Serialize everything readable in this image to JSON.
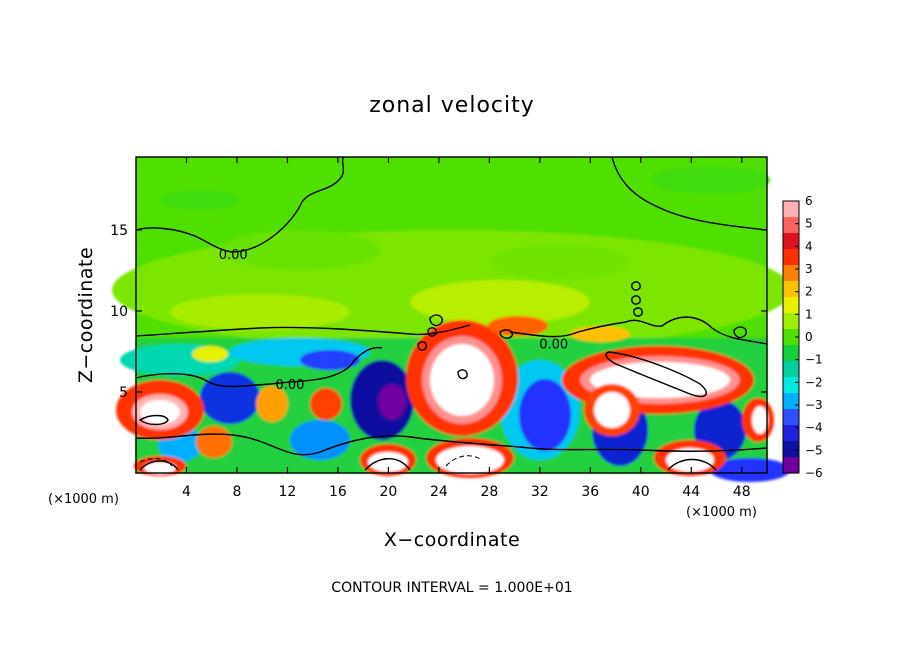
{
  "chart_data": {
    "type": "heatmap",
    "title": "zonal velocity",
    "xlabel": "X−coordinate",
    "ylabel": "Z−coordinate",
    "x_unit_left": "(×1000 m)",
    "x_unit_right": "(×1000 m)",
    "xticks": [
      4,
      8,
      12,
      16,
      20,
      24,
      28,
      32,
      36,
      40,
      44,
      48
    ],
    "yticks": [
      5,
      10,
      15
    ],
    "xlim": [
      0,
      50
    ],
    "ylim": [
      0,
      19.5
    ],
    "colorbar": {
      "ticks": [
        6,
        5,
        4,
        3,
        2,
        1,
        0,
        -1,
        -2,
        -3,
        -4,
        -5,
        -6
      ],
      "labels": [
        "6",
        "5",
        "4",
        "3",
        "2",
        "1",
        "0",
        "−1",
        "−2",
        "−3",
        "−4",
        "−5",
        "−6"
      ],
      "range": [
        -6,
        6
      ],
      "colors": [
        "#ffb0b0",
        "#ff6060",
        "#e01020",
        "#ff3000",
        "#ff8000",
        "#ffc000",
        "#e8f000",
        "#a0ee00",
        "#50e000",
        "#10d040",
        "#00d0a0",
        "#00e8e0",
        "#00b0ff",
        "#3050ff",
        "#2020e0",
        "#1010a0",
        "#7000a0"
      ]
    },
    "contour_labels": [
      {
        "text": "0.00",
        "x": 7.7,
        "z": 13.5
      },
      {
        "text": "0.00",
        "x": 12.2,
        "z": 5.5
      },
      {
        "text": "0.00",
        "x": 33.1,
        "z": 8.0
      }
    ],
    "footer_note": "CONTOUR INTERVAL = 1.000E+01"
  }
}
